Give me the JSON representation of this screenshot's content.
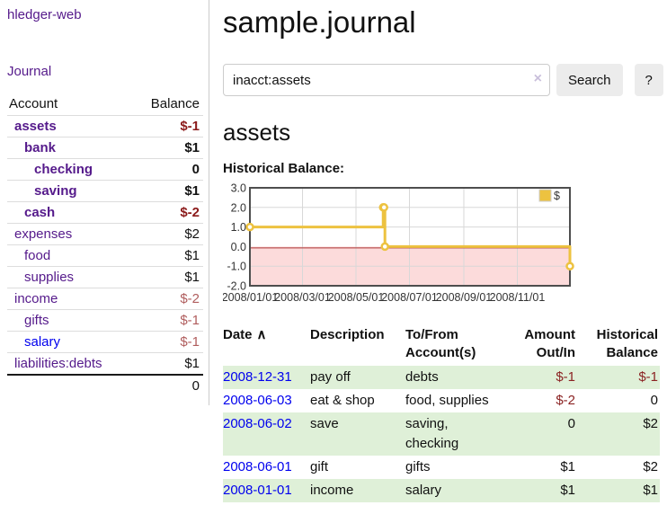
{
  "colors": {
    "accent_purple": "#551a8b",
    "link_blue": "#0000ee",
    "negative_bold": "#8b1a1a",
    "negative_soft": "#b05d5d",
    "negative_register": "#8b2323",
    "stripe_green": "#dff0d8",
    "series_gold": "#edc240",
    "negative_region_pink": "#fcdbdb",
    "zero_line_red": "#aa3333"
  },
  "sidebar": {
    "brand": "hledger-web",
    "journal_link": "Journal",
    "accounts_table": {
      "headers": {
        "account": "Account",
        "balance": "Balance"
      },
      "rows": [
        {
          "account": "assets",
          "level": 1,
          "bold": true,
          "balance": "$-1"
        },
        {
          "account": "bank",
          "level": 2,
          "bold": true,
          "balance": "$1"
        },
        {
          "account": "checking",
          "level": 3,
          "bold": true,
          "balance": "0"
        },
        {
          "account": "saving",
          "level": 3,
          "bold": true,
          "balance": "$1"
        },
        {
          "account": "cash",
          "level": 2,
          "bold": true,
          "balance": "$-2"
        },
        {
          "account": "expenses",
          "level": 1,
          "bold": false,
          "balance": "$2"
        },
        {
          "account": "food",
          "level": 2,
          "bold": false,
          "balance": "$1"
        },
        {
          "account": "supplies",
          "level": 2,
          "bold": false,
          "balance": "$1"
        },
        {
          "account": "income",
          "level": 1,
          "bold": false,
          "balance": "$-2"
        },
        {
          "account": "gifts",
          "level": 2,
          "bold": false,
          "balance": "$-1"
        },
        {
          "account": "salary",
          "level": 2,
          "bold": false,
          "balance": "$-1",
          "unvisited": true
        },
        {
          "account": "liabilities:debts",
          "level": 1,
          "bold": false,
          "balance": "$1"
        }
      ],
      "total": "0"
    }
  },
  "header": {
    "title": "sample.journal"
  },
  "search": {
    "value": "inacct:assets",
    "clear_icon": "×",
    "search_label": "Search",
    "help_label": "?"
  },
  "account_page": {
    "title": "assets",
    "chart_label": "Historical Balance:"
  },
  "chart_data": {
    "type": "line",
    "step": true,
    "series": [
      {
        "name": "$",
        "color": "#edc240",
        "points": [
          [
            "2008-01-01",
            1
          ],
          [
            "2008-06-01",
            2
          ],
          [
            "2008-06-02",
            2
          ],
          [
            "2008-06-03",
            0
          ],
          [
            "2008-12-31",
            -1
          ]
        ]
      }
    ],
    "x_range": [
      "2008-01-01",
      "2008-12-31"
    ],
    "x_tick_labels": [
      "2008/01/01",
      "2008/03/01",
      "2008/05/01",
      "2008/07/01",
      "2008/09/01",
      "2008/11/01"
    ],
    "y_ticks": [
      3,
      2,
      1,
      0,
      -1,
      -2
    ],
    "ylim": [
      -2,
      3
    ],
    "grid": true,
    "legend": {
      "position": "top-right",
      "label": "$"
    },
    "negative_region": {
      "fill": "#fcdbdb",
      "zero_line": "#aa3333"
    }
  },
  "register_table": {
    "headers": [
      "Date",
      "Description",
      "To/From Account(s)",
      "Amount Out/In",
      "Historical Balance"
    ],
    "sort_column": "Date",
    "sort_indicator": "∧",
    "rows": [
      {
        "date": "2008-12-31",
        "description": "pay off",
        "accounts": "debts",
        "amount": "$-1",
        "balance": "$-1"
      },
      {
        "date": "2008-06-03",
        "description": "eat & shop",
        "accounts": "food, supplies",
        "amount": "$-2",
        "balance": "0"
      },
      {
        "date": "2008-06-02",
        "description": "save",
        "accounts": "saving, checking",
        "amount": "0",
        "balance": "$2"
      },
      {
        "date": "2008-06-01",
        "description": "gift",
        "accounts": "gifts",
        "amount": "$1",
        "balance": "$2"
      },
      {
        "date": "2008-01-01",
        "description": "income",
        "accounts": "salary",
        "amount": "$1",
        "balance": "$1"
      }
    ]
  }
}
